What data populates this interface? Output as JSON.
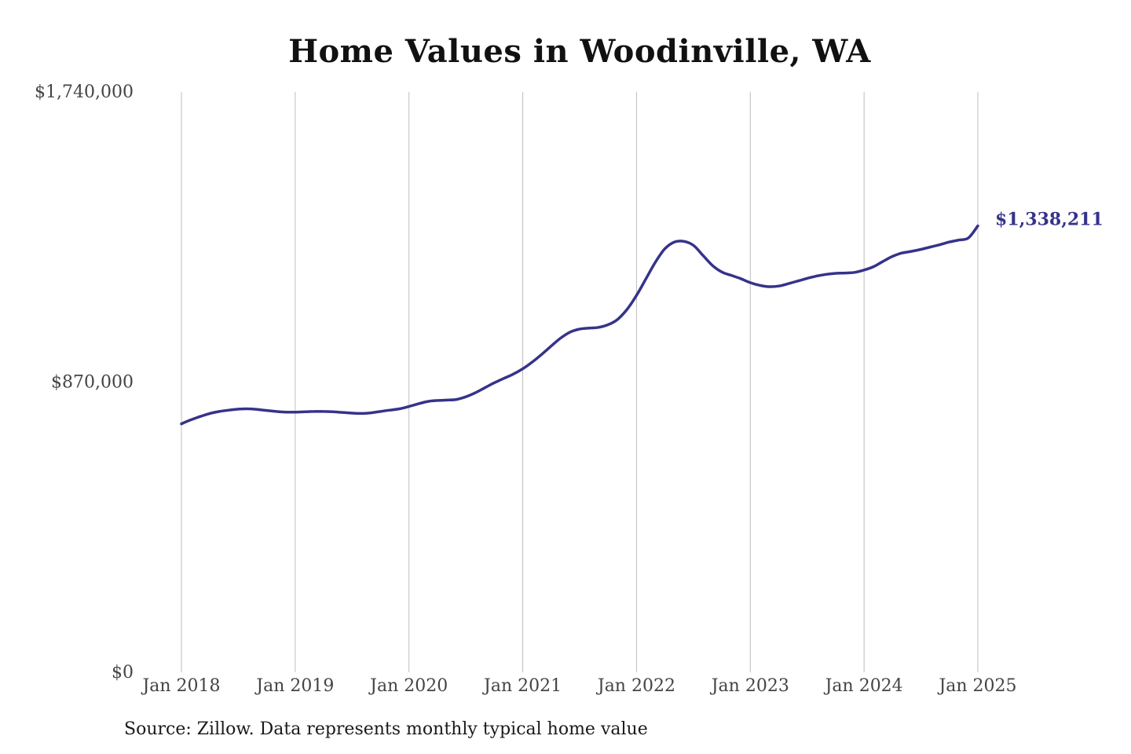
{
  "chart_data": {
    "type": "line",
    "title": "Home Values in Woodinville, WA",
    "source": "Source: Zillow. Data represents monthly typical home value",
    "ylim": [
      0,
      1740000
    ],
    "y_ticks": [
      0,
      870000,
      1740000
    ],
    "y_tick_labels": [
      "$0",
      "$870,000",
      "$1,740,000"
    ],
    "x_ticks": [
      "2018-01",
      "2019-01",
      "2020-01",
      "2021-01",
      "2022-01",
      "2023-01",
      "2024-01",
      "2025-01"
    ],
    "x_tick_labels": [
      "Jan 2018",
      "Jan 2019",
      "Jan 2020",
      "Jan 2021",
      "Jan 2022",
      "Jan 2023",
      "Jan 2024",
      "Jan 2025"
    ],
    "grid": "vertical",
    "line_color": "#35338a",
    "end_label": "$1,338,211",
    "series": [
      {
        "x": [
          "2018-01",
          "2018-02",
          "2018-03",
          "2018-04",
          "2018-05",
          "2018-06",
          "2018-07",
          "2018-08",
          "2018-09",
          "2018-10",
          "2018-11",
          "2018-12",
          "2019-01",
          "2019-02",
          "2019-03",
          "2019-04",
          "2019-05",
          "2019-06",
          "2019-07",
          "2019-08",
          "2019-09",
          "2019-10",
          "2019-11",
          "2019-12",
          "2020-01",
          "2020-02",
          "2020-03",
          "2020-04",
          "2020-05",
          "2020-06",
          "2020-07",
          "2020-08",
          "2020-09",
          "2020-10",
          "2020-11",
          "2020-12",
          "2021-01",
          "2021-02",
          "2021-03",
          "2021-04",
          "2021-05",
          "2021-06",
          "2021-07",
          "2021-08",
          "2021-09",
          "2021-10",
          "2021-11",
          "2021-12",
          "2022-01",
          "2022-02",
          "2022-03",
          "2022-04",
          "2022-05",
          "2022-06",
          "2022-07",
          "2022-08",
          "2022-09",
          "2022-10",
          "2022-11",
          "2022-12",
          "2023-01",
          "2023-02",
          "2023-03",
          "2023-04",
          "2023-05",
          "2023-06",
          "2023-07",
          "2023-08",
          "2023-09",
          "2023-10",
          "2023-11",
          "2023-12",
          "2024-01",
          "2024-02",
          "2024-03",
          "2024-04",
          "2024-05",
          "2024-06",
          "2024-07",
          "2024-08",
          "2024-09",
          "2024-10",
          "2024-11",
          "2024-12",
          "2025-01"
        ],
        "values": [
          745000,
          757000,
          767000,
          776000,
          782000,
          786000,
          789000,
          790000,
          788000,
          785000,
          782000,
          780000,
          780000,
          781000,
          782000,
          782000,
          781000,
          779000,
          777000,
          776000,
          778000,
          782000,
          786000,
          790000,
          797000,
          805000,
          812000,
          815000,
          816000,
          818000,
          826000,
          838000,
          853000,
          868000,
          881000,
          894000,
          910000,
          930000,
          953000,
          978000,
          1002000,
          1020000,
          1029000,
          1032000,
          1034000,
          1042000,
          1058000,
          1088000,
          1130000,
          1180000,
          1230000,
          1270000,
          1290000,
          1292000,
          1280000,
          1250000,
          1220000,
          1200000,
          1190000,
          1180000,
          1168000,
          1160000,
          1156000,
          1158000,
          1165000,
          1173000,
          1181000,
          1188000,
          1193000,
          1196000,
          1197000,
          1199000,
          1206000,
          1216000,
          1232000,
          1247000,
          1257000,
          1262000,
          1268000,
          1275000,
          1282000,
          1290000,
          1296000,
          1302000,
          1338211
        ]
      }
    ]
  }
}
